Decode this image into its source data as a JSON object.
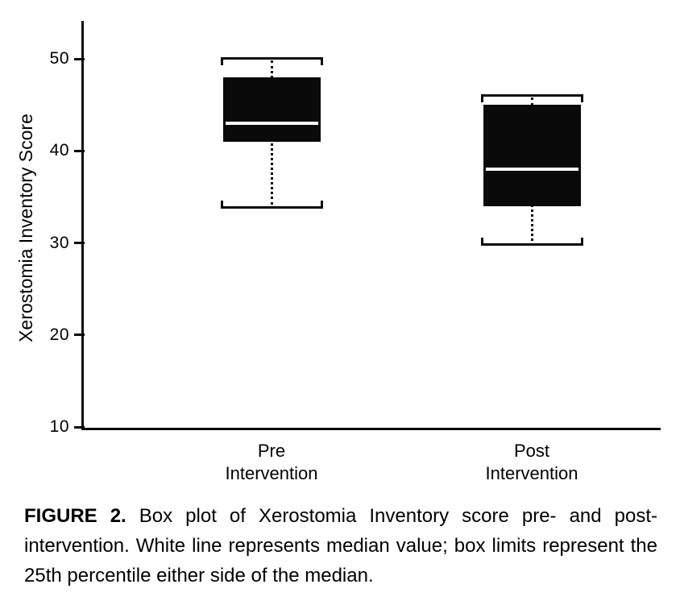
{
  "figure": {
    "caption_label": "FIGURE 2.",
    "caption_text": "Box plot of Xerostomia Inventory score pre- and post-intervention. White line represents median value; box limits represent the 25th percentile either side of the median."
  },
  "chart_data": {
    "type": "box",
    "title": "",
    "xlabel": "",
    "ylabel": "Xerostomia Inventory Score",
    "ylim": [
      10,
      54
    ],
    "yticks": [
      10,
      20,
      30,
      40,
      50
    ],
    "grid": false,
    "legend": "none",
    "categories": [
      "Pre\nIntervention",
      "Post\nIntervention"
    ],
    "boxes": [
      {
        "category": "Pre Intervention",
        "whisker_low": 34,
        "q1": 41,
        "median": 43,
        "q3": 48,
        "whisker_high": 50
      },
      {
        "category": "Post Intervention",
        "whisker_low": 30,
        "q1": 34,
        "median": 38,
        "q3": 45,
        "whisker_high": 46
      }
    ],
    "colors": {
      "box_fill": "#0a0a0a",
      "median_line": "#ffffff",
      "ink": "#0a0a0a",
      "background": "#ffffff"
    }
  }
}
